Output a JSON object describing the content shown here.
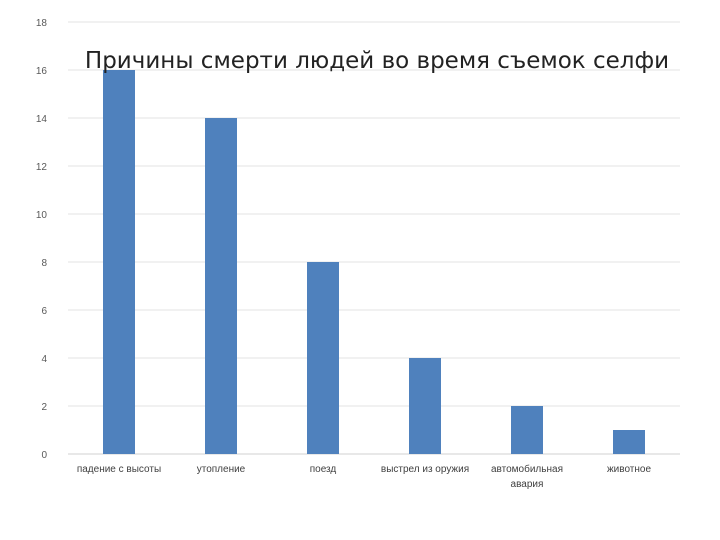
{
  "chart_data": {
    "type": "bar",
    "title": "Причины смерти людей во время съемок селфи",
    "categories": [
      [
        "падение с высоты"
      ],
      [
        "утопление"
      ],
      [
        "поезд"
      ],
      [
        "выстрел из оружия"
      ],
      [
        "автомобильная",
        "авария"
      ],
      [
        "животное"
      ]
    ],
    "values": [
      16,
      14,
      8,
      4,
      2,
      1
    ],
    "ylim": [
      0,
      18
    ],
    "yticks": [
      0,
      2,
      4,
      6,
      8,
      10,
      12,
      14,
      16,
      18
    ],
    "grid": true,
    "legend": "none",
    "xlabel": "",
    "ylabel": "",
    "colors": {
      "bar": "#4f81bd",
      "grid": "#e3e3e3",
      "axis": "#d0d0d0"
    }
  }
}
